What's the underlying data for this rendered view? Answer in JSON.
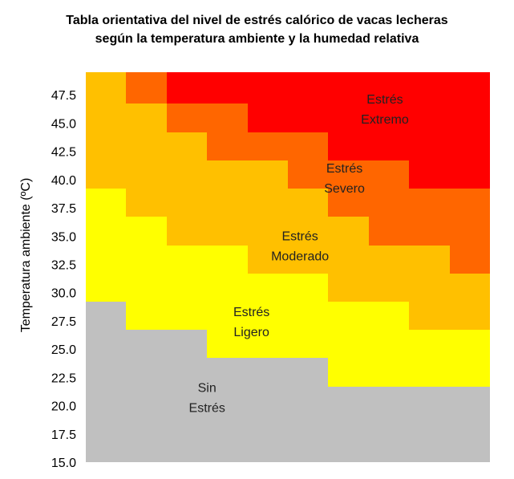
{
  "chart_data": {
    "type": "heatmap",
    "title": "Tabla orientativa del nivel de estrés calórico de vacas lecheras",
    "subtitle": "según la temperatura ambiente y la humedad relativa",
    "xlabel": "",
    "ylabel": "Temperatura ambiente (ºC)",
    "ylim": [
      15.0,
      49.5
    ],
    "y_ticks": [
      "15.0",
      "17.5",
      "20.0",
      "22.5",
      "25.0",
      "27.5",
      "30.0",
      "32.5",
      "35.0",
      "37.5",
      "40.0",
      "42.5",
      "45.0",
      "47.5"
    ],
    "x_columns": 10,
    "grid": false,
    "levels": [
      {
        "id": "sin",
        "label": [
          "Sin",
          "Estrés"
        ],
        "color": "#c0c0c0",
        "label_x_col": 3.0,
        "label_y": 20.8
      },
      {
        "id": "ligero",
        "label": [
          "Estrés",
          "Ligero"
        ],
        "color": "#ffff00",
        "label_x_col": 4.1,
        "label_y": 27.5
      },
      {
        "id": "moderado",
        "label": [
          "Estrés",
          "Moderado"
        ],
        "color": "#ffc000",
        "label_x_col": 5.3,
        "label_y": 34.2
      },
      {
        "id": "severo",
        "label": [
          "Estrés",
          "Severo"
        ],
        "color": "#ff6600",
        "label_x_col": 6.4,
        "label_y": 40.2
      },
      {
        "id": "extremo",
        "label": [
          "Estrés",
          "Extremo"
        ],
        "color": "#ff0000",
        "label_x_col": 7.4,
        "label_y": 46.3
      }
    ],
    "boundaries": {
      "sin_upper": [
        29.2,
        26.7,
        26.7,
        24.2,
        24.2,
        24.2,
        21.7,
        21.7,
        21.7,
        21.7
      ],
      "ligero_upper": [
        39.2,
        36.7,
        34.2,
        34.2,
        31.7,
        31.7,
        29.2,
        29.2,
        26.7,
        26.7
      ],
      "moderado_upper": [
        49.5,
        46.7,
        44.2,
        41.7,
        41.7,
        39.2,
        36.7,
        34.2,
        34.2,
        31.7
      ],
      "severo_upper": [
        49.5,
        49.5,
        46.7,
        46.7,
        44.2,
        44.2,
        41.7,
        41.7,
        39.2,
        39.2
      ]
    }
  }
}
